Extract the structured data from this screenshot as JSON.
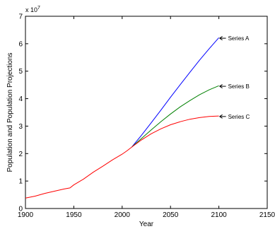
{
  "chart_data": {
    "type": "line",
    "title": "",
    "xlabel": "Year",
    "ylabel": "Population and Population Projections",
    "xlim": [
      1900,
      2150
    ],
    "ylim": [
      0,
      7
    ],
    "y_multiplier_label": "x 10",
    "y_multiplier_exponent": "7",
    "x_ticks": [
      1900,
      1950,
      2000,
      2050,
      2100,
      2150
    ],
    "y_ticks": [
      0,
      1,
      2,
      3,
      4,
      5,
      6,
      7
    ],
    "grid": false,
    "historical": {
      "color": "#ff0000",
      "x": [
        1900,
        1910,
        1920,
        1930,
        1940,
        1946,
        1950,
        1960,
        1970,
        1975,
        1980,
        1990,
        2000,
        2005,
        2010
      ],
      "y": [
        0.38,
        0.45,
        0.55,
        0.63,
        0.71,
        0.75,
        0.86,
        1.07,
        1.32,
        1.43,
        1.54,
        1.77,
        1.98,
        2.1,
        2.24
      ]
    },
    "series": [
      {
        "name": "Series A",
        "color": "#0000ff",
        "x": [
          2010,
          2020,
          2030,
          2040,
          2050,
          2060,
          2070,
          2080,
          2090,
          2100
        ],
        "y": [
          2.24,
          2.67,
          3.12,
          3.58,
          4.05,
          4.51,
          4.96,
          5.4,
          5.82,
          6.22
        ]
      },
      {
        "name": "Series B",
        "color": "#008000",
        "x": [
          2010,
          2020,
          2030,
          2040,
          2050,
          2060,
          2070,
          2080,
          2090,
          2100
        ],
        "y": [
          2.24,
          2.55,
          2.86,
          3.16,
          3.44,
          3.7,
          3.93,
          4.14,
          4.32,
          4.47
        ]
      },
      {
        "name": "Series C",
        "color": "#ff0000",
        "x": [
          2010,
          2020,
          2030,
          2040,
          2050,
          2060,
          2070,
          2080,
          2090,
          2100
        ],
        "y": [
          2.24,
          2.5,
          2.72,
          2.9,
          3.05,
          3.16,
          3.25,
          3.31,
          3.35,
          3.37
        ]
      }
    ],
    "annotations": [
      {
        "text": "Series A",
        "x": 2100,
        "y": 6.2
      },
      {
        "text": "Series B",
        "x": 2100,
        "y": 4.45
      },
      {
        "text": "Series C",
        "x": 2100,
        "y": 3.35
      }
    ]
  }
}
